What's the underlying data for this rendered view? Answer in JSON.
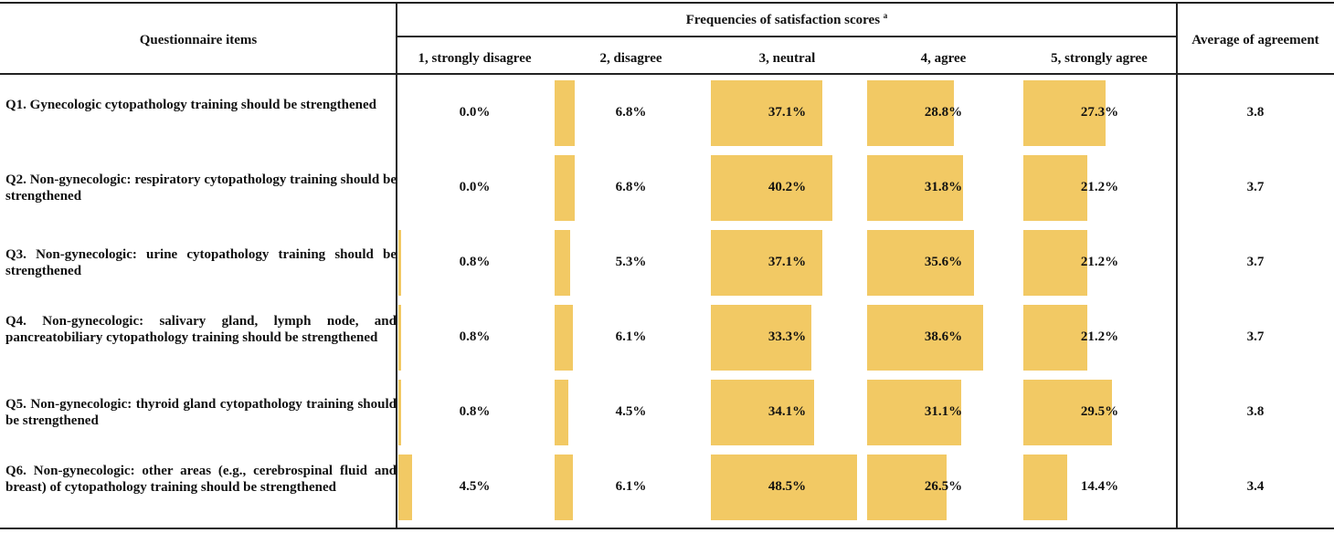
{
  "header": {
    "questionnaire_label": "Questionnaire items",
    "group_label": "Frequencies of satisfaction scores",
    "group_footnote": "a",
    "score_columns": [
      "1, strongly disagree",
      "2, disagree",
      "3, neutral",
      "4, agree",
      "5, strongly agree"
    ],
    "average_label": "Average of agreement"
  },
  "rows": [
    {
      "item": "Q1.  Gynecologic  cytopathology  training  should  be strengthened",
      "values": [
        0.0,
        6.8,
        37.1,
        28.8,
        27.3
      ],
      "labels": [
        "0.0%",
        "6.8%",
        "37.1%",
        "28.8%",
        "27.3%"
      ],
      "average": "3.8"
    },
    {
      "item": "Q2. Non-gynecologic: respiratory cytopathology training should be strengthened",
      "values": [
        0.0,
        6.8,
        40.2,
        31.8,
        21.2
      ],
      "labels": [
        "0.0%",
        "6.8%",
        "40.2%",
        "31.8%",
        "21.2%"
      ],
      "average": "3.7"
    },
    {
      "item": "Q3. Non-gynecologic: urine cytopathology training should be strengthened",
      "values": [
        0.8,
        5.3,
        37.1,
        35.6,
        21.2
      ],
      "labels": [
        "0.8%",
        "5.3%",
        "37.1%",
        "35.6%",
        "21.2%"
      ],
      "average": "3.7"
    },
    {
      "item": "Q4. Non-gynecologic: salivary gland, lymph node, and pancreatobiliary  cytopathology  training  should  be strengthened",
      "values": [
        0.8,
        6.1,
        33.3,
        38.6,
        21.2
      ],
      "labels": [
        "0.8%",
        "6.1%",
        "33.3%",
        "38.6%",
        "21.2%"
      ],
      "average": "3.7"
    },
    {
      "item": "Q5.  Non-gynecologic:  thyroid  gland  cytopathology training should be strengthened",
      "values": [
        0.8,
        4.5,
        34.1,
        31.1,
        29.5
      ],
      "labels": [
        "0.8%",
        "4.5%",
        "34.1%",
        "31.1%",
        "29.5%"
      ],
      "average": "3.8"
    },
    {
      "item": "Q6. Non-gynecologic: other areas (e.g., cerebrospinal fluid and  breast)  of  cytopathology  training  should  be strengthened",
      "values": [
        4.5,
        6.1,
        48.5,
        26.5,
        14.4
      ],
      "labels": [
        "4.5%",
        "6.1%",
        "48.5%",
        "26.5%",
        "14.4%"
      ],
      "average": "3.4"
    }
  ],
  "colors": {
    "bar": "#f2c964",
    "rule": "#222222"
  }
}
